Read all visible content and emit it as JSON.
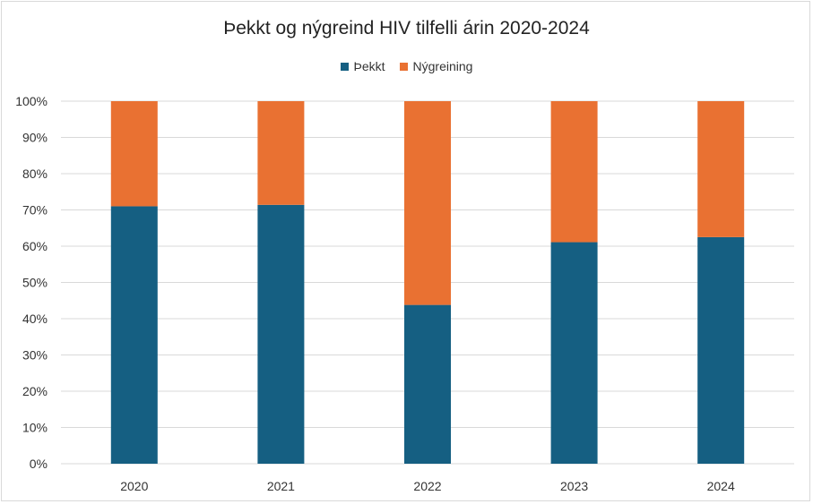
{
  "chart_data": {
    "type": "bar",
    "stacked": true,
    "percent_stacked": true,
    "title": "Þekkt og nýgreind HIV tilfelli árin 2020-2024",
    "xlabel": "",
    "ylabel": "",
    "categories": [
      "2020",
      "2021",
      "2022",
      "2023",
      "2024"
    ],
    "series": [
      {
        "name": "Þekkt",
        "color": "#155f82",
        "values": [
          71,
          71.4,
          43.8,
          61.1,
          62.5
        ]
      },
      {
        "name": "Nýgreining",
        "color": "#e97132",
        "values": [
          29,
          28.6,
          56.2,
          38.9,
          37.5
        ]
      }
    ],
    "ylim": [
      0,
      100
    ],
    "yticks": [
      0,
      10,
      20,
      30,
      40,
      50,
      60,
      70,
      80,
      90,
      100
    ],
    "ytick_labels": [
      "0%",
      "10%",
      "20%",
      "30%",
      "40%",
      "50%",
      "60%",
      "70%",
      "80%",
      "90%",
      "100%"
    ],
    "grid": true,
    "legend_position": "top"
  }
}
